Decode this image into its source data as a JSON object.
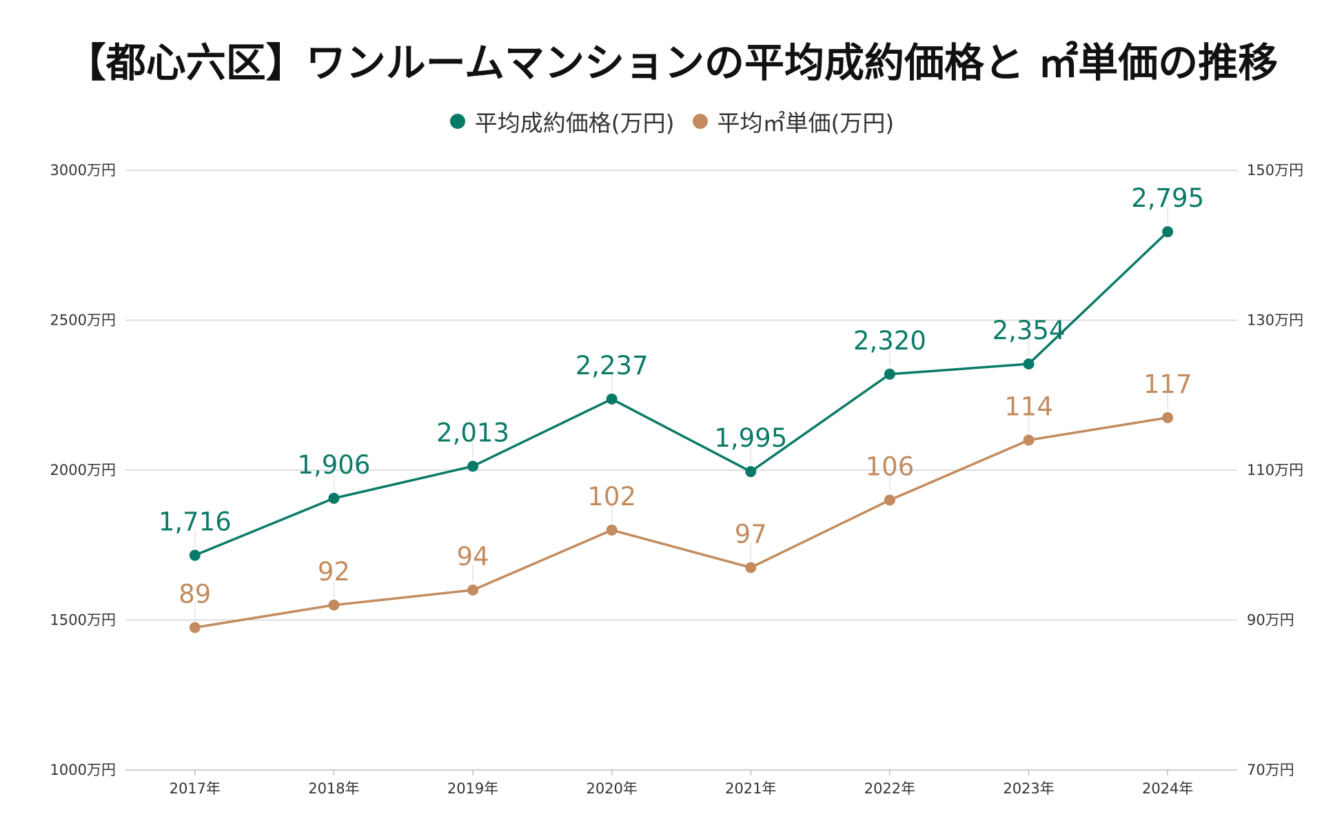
{
  "chart_data": {
    "type": "line",
    "title": "【都心六区】ワンルームマンションの平均成約価格と ㎡単価の推移",
    "categories": [
      "2017年",
      "2018年",
      "2019年",
      "2020年",
      "2021年",
      "2022年",
      "2023年",
      "2024年"
    ],
    "left_axis": {
      "ticks": [
        1000,
        1500,
        2000,
        2500,
        3000
      ],
      "tick_labels": [
        "1000万円",
        "1500万円",
        "2000万円",
        "2500万円",
        "3000万円"
      ],
      "ylim": [
        1000,
        3000
      ]
    },
    "right_axis": {
      "ticks": [
        70,
        90,
        110,
        130,
        150
      ],
      "tick_labels": [
        "70万円",
        "90万円",
        "110万円",
        "130万円",
        "150万円"
      ],
      "ylim": [
        70,
        150
      ]
    },
    "grid": true,
    "legend_position": "top-center",
    "series": [
      {
        "name": "平均成約価格(万円)",
        "axis": "left",
        "color": "#0a7a68",
        "values": [
          1716,
          1906,
          2013,
          2237,
          1995,
          2320,
          2354,
          2795
        ],
        "labels": [
          "1,716",
          "1,906",
          "2,013",
          "2,237",
          "1,995",
          "2,320",
          "2,354",
          "2,795"
        ]
      },
      {
        "name": "平均㎡単価(万円)",
        "axis": "right",
        "color": "#c38b5e",
        "values": [
          89,
          92,
          94,
          102,
          97,
          106,
          114,
          117
        ],
        "labels": [
          "89",
          "92",
          "94",
          "102",
          "97",
          "106",
          "114",
          "117"
        ]
      }
    ]
  }
}
